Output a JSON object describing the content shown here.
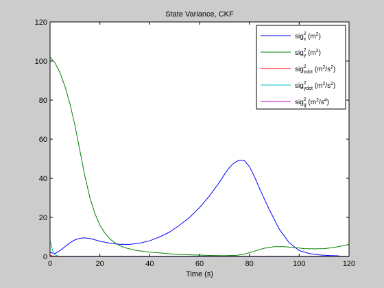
{
  "chart_data": {
    "type": "line",
    "title": "State Variance, CKF",
    "xlabel": "Time (s)",
    "ylabel": "",
    "xlim": [
      0,
      120
    ],
    "ylim": [
      0,
      120
    ],
    "xticks": [
      0,
      20,
      40,
      60,
      80,
      100,
      120
    ],
    "yticks": [
      0,
      20,
      40,
      60,
      80,
      100,
      120
    ],
    "grid": false,
    "legend_position": "top-right",
    "series": [
      {
        "legend": {
          "base": "sig",
          "sup": "2",
          "sub": "x",
          "unit_open": "(m",
          "unit_sup": "2",
          "unit_close": ")"
        },
        "color": "#0000ff",
        "x": [
          0,
          2,
          4,
          6,
          8,
          10,
          12,
          14,
          16,
          18,
          20,
          24,
          28,
          32,
          36,
          40,
          44,
          48,
          52,
          56,
          60,
          64,
          68,
          70,
          72,
          74,
          76,
          78,
          80,
          82,
          84,
          88,
          92,
          96,
          100,
          104,
          108,
          112,
          116
        ],
        "y": [
          2,
          1.5,
          3,
          5,
          7,
          8.5,
          9.3,
          9.5,
          9.2,
          8.5,
          7.8,
          6.8,
          6.2,
          6.2,
          6.8,
          8,
          10,
          12.5,
          16,
          20,
          25,
          31,
          38,
          42,
          45.5,
          48,
          49.3,
          49,
          46,
          41,
          35,
          24,
          14,
          7,
          3,
          1.5,
          0.8,
          0.5,
          0.3
        ]
      },
      {
        "legend": {
          "base": "sig",
          "sup": "2",
          "sub": "y",
          "unit_open": "(m",
          "unit_sup": "2",
          "unit_close": ")"
        },
        "color": "#008000",
        "x": [
          0,
          2,
          4,
          6,
          8,
          10,
          12,
          14,
          16,
          18,
          20,
          22,
          24,
          26,
          28,
          30,
          34,
          38,
          42,
          46,
          50,
          55,
          60,
          65,
          70,
          75,
          78,
          82,
          86,
          90,
          94,
          98,
          102,
          106,
          110,
          114,
          118,
          120
        ],
        "y": [
          102,
          99,
          94,
          87,
          78,
          67,
          54,
          41,
          30,
          22,
          16,
          12,
          9,
          7,
          5.5,
          4.5,
          3.2,
          2.5,
          2,
          1.6,
          1.2,
          0.9,
          0.7,
          0.5,
          0.4,
          0.6,
          1.2,
          2.7,
          4.2,
          5,
          5,
          4.6,
          4,
          3.9,
          4,
          4.6,
          5.6,
          6.2
        ]
      },
      {
        "legend": {
          "base": "sig",
          "sup": "2",
          "sub": "xdot",
          "unit_open": "(m",
          "unit_sup": "2",
          "unit_mid": "/s",
          "unit_sup2": "2",
          "unit_close": ")"
        },
        "color": "#ff0000",
        "x": [
          0,
          1,
          2,
          4,
          120
        ],
        "y": [
          0.5,
          0.3,
          0.15,
          0.05,
          0.05
        ]
      },
      {
        "legend": {
          "base": "sig",
          "sup": "2",
          "sub": "ydot",
          "unit_open": "(m",
          "unit_sup": "2",
          "unit_mid": "/s",
          "unit_sup2": "2",
          "unit_close": ")"
        },
        "color": "#00bfbf",
        "x": [
          0,
          0.5,
          1,
          1.5,
          2,
          3,
          4,
          120
        ],
        "y": [
          8,
          6,
          3,
          1.5,
          0.8,
          0.3,
          0.1,
          0.1
        ]
      },
      {
        "legend": {
          "base": "sig",
          "sup": "2",
          "sub": "g",
          "unit_open": "(m",
          "unit_sup": "2",
          "unit_mid": "/s",
          "unit_sup2": "4",
          "unit_close": ")"
        },
        "color": "#bf00bf",
        "x": [
          0,
          120
        ],
        "y": [
          0.1,
          0.1
        ]
      }
    ]
  }
}
